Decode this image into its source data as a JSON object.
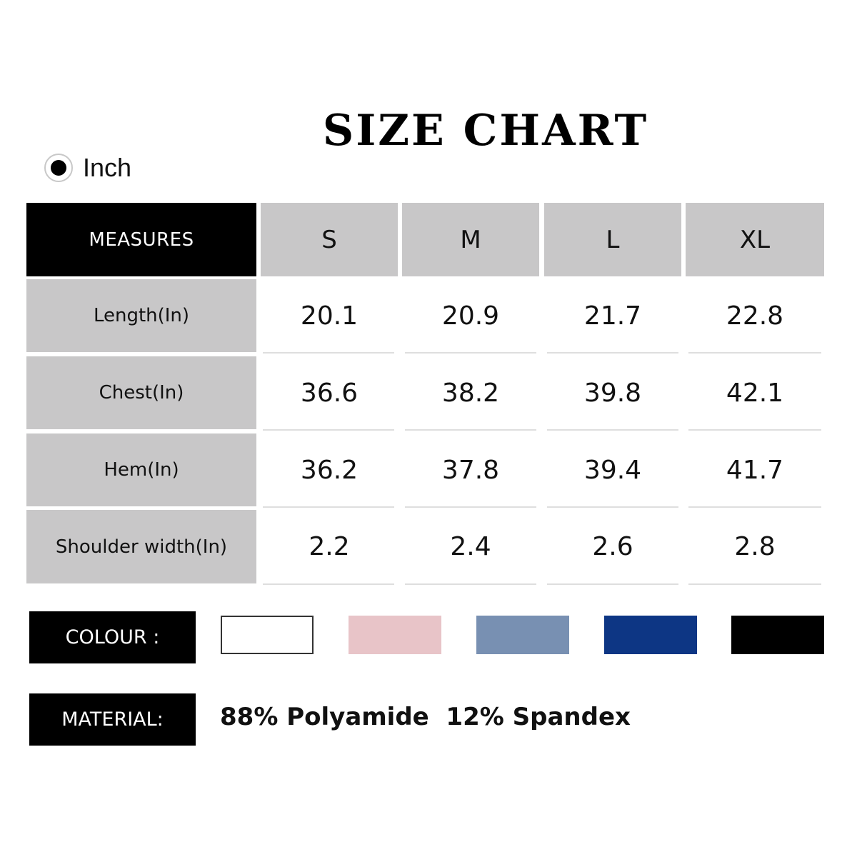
{
  "title": "SIZE CHART",
  "unit": {
    "label": "Inch",
    "selected": true
  },
  "table": {
    "header_label": "MEASURES",
    "sizes": [
      "S",
      "M",
      "L",
      "XL"
    ],
    "rows": [
      {
        "label": "Length(In)",
        "values": [
          "20.1",
          "20.9",
          "21.7",
          "22.8"
        ]
      },
      {
        "label": "Chest(In)",
        "values": [
          "36.6",
          "38.2",
          "39.8",
          "42.1"
        ]
      },
      {
        "label": "Hem(In)",
        "values": [
          "36.2",
          "37.8",
          "39.4",
          "41.7"
        ]
      },
      {
        "label": "Shoulder width(In)",
        "values": [
          "2.2",
          "2.4",
          "2.6",
          "2.8"
        ]
      }
    ]
  },
  "colour": {
    "label": "COLOUR :",
    "swatches": [
      "#ffffff",
      "#e8c4c8",
      "#7890b2",
      "#0d3684",
      "#000000"
    ]
  },
  "material": {
    "label": "MATERIAL:",
    "text": "88% Polyamide  12% Spandex"
  }
}
